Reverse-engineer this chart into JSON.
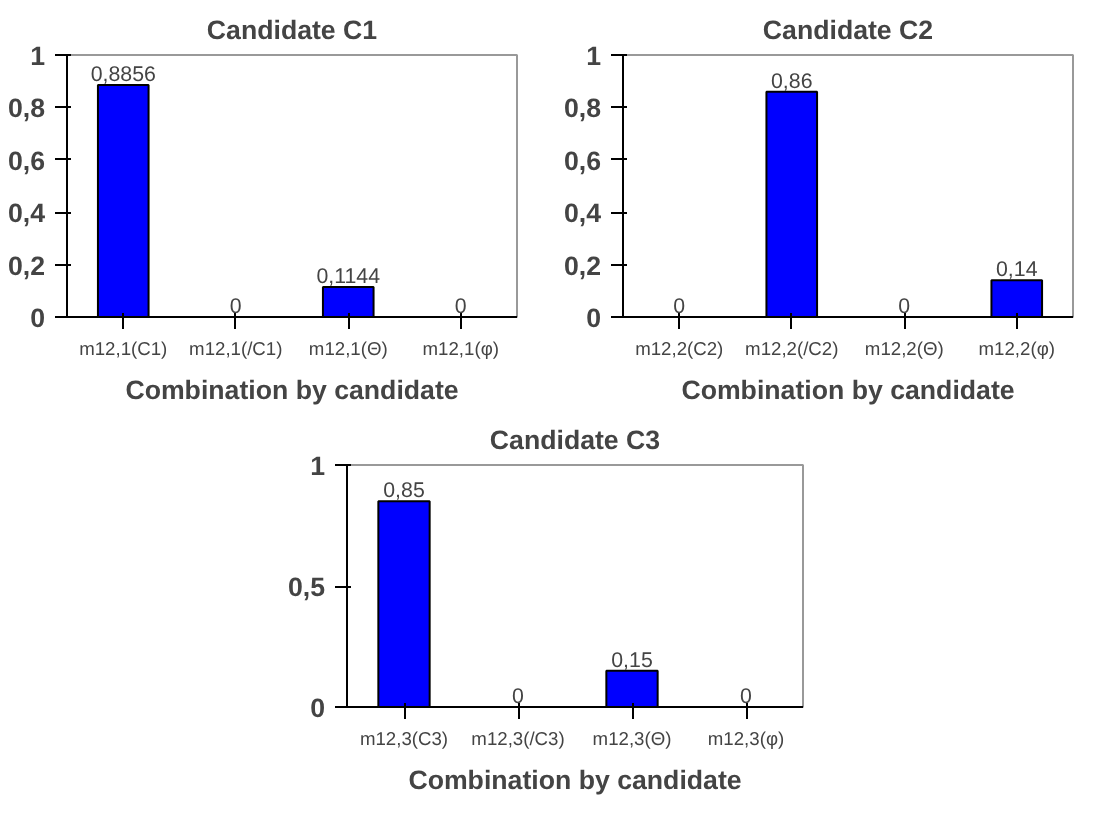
{
  "chart_data": [
    {
      "type": "bar",
      "title": "Candidate C1",
      "xlabel": "Combination by candidate",
      "categories": [
        "m12,1(C1)",
        "m12,1(/C1)",
        "m12,1(Θ)",
        "m12,1(φ)"
      ],
      "values": [
        0.8856,
        0,
        0.1144,
        0
      ],
      "value_labels": [
        "0,8856",
        "0",
        "0,1144",
        "0"
      ],
      "color": "#0000ff",
      "ylim": [
        0,
        1
      ],
      "yticks": [
        0,
        {
          "value": 0.2,
          "label": "0,2"
        },
        {
          "value": 0.4,
          "label": "0,4"
        },
        {
          "value": 0.6,
          "label": "0,6"
        },
        {
          "value": 0.8,
          "label": "0,8"
        },
        1
      ],
      "grid": false
    },
    {
      "type": "bar",
      "title": "Candidate C2",
      "xlabel": "Combination by candidate",
      "categories": [
        "m12,2(C2)",
        "m12,2(/C2)",
        "m12,2(Θ)",
        "m12,2(φ)"
      ],
      "values": [
        0,
        0.86,
        0,
        0.14
      ],
      "value_labels": [
        "0",
        "0,86",
        "0",
        "0,14"
      ],
      "color": "#0000ff",
      "ylim": [
        0,
        1
      ],
      "yticks": [
        0,
        {
          "value": 0.2,
          "label": "0,2"
        },
        {
          "value": 0.4,
          "label": "0,4"
        },
        {
          "value": 0.6,
          "label": "0,6"
        },
        {
          "value": 0.8,
          "label": "0,8"
        },
        1
      ],
      "grid": false
    },
    {
      "type": "bar",
      "title": "Candidate C3",
      "xlabel": "Combination by candidate",
      "categories": [
        "m12,3(C3)",
        "m12,3(/C3)",
        "m12,3(Θ)",
        "m12,3(φ)"
      ],
      "values": [
        0.85,
        0,
        0.15,
        0
      ],
      "value_labels": [
        "0,85",
        "0",
        "0,15",
        "0"
      ],
      "color": "#0000ff",
      "ylim": [
        0,
        1
      ],
      "yticks": [
        0,
        {
          "value": 0.5,
          "label": "0,5"
        },
        1
      ],
      "grid": false
    }
  ]
}
